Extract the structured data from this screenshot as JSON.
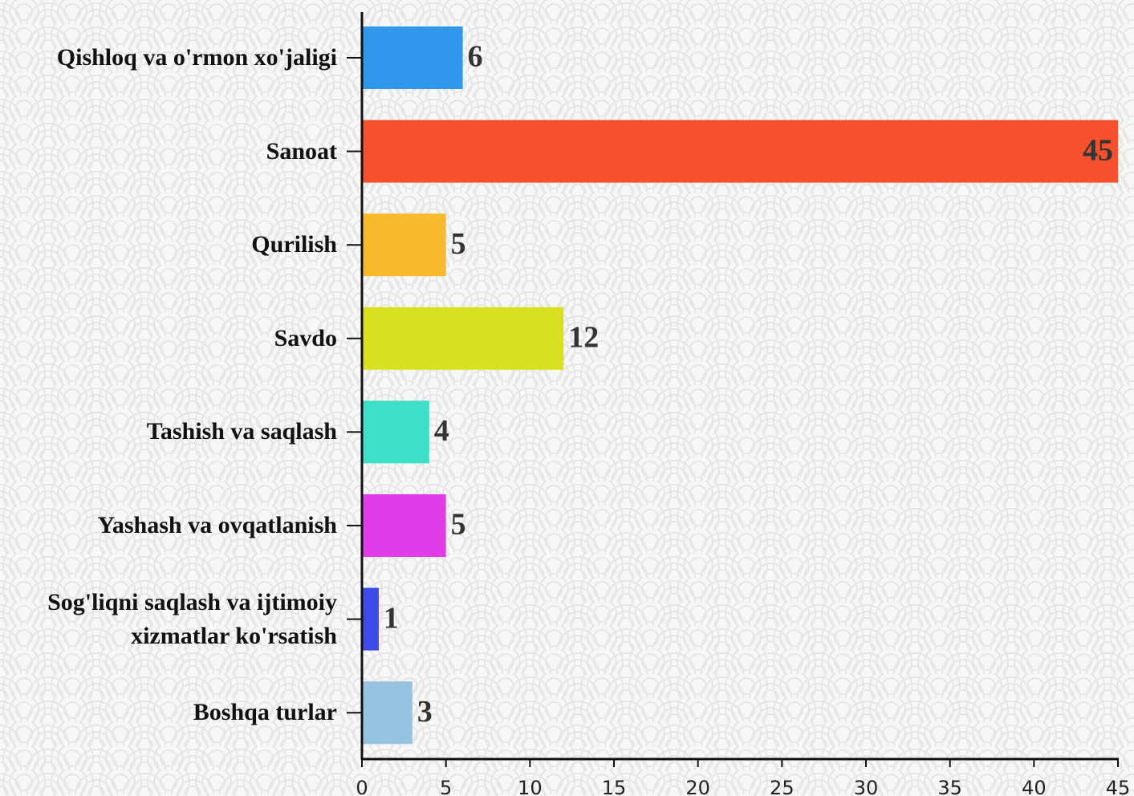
{
  "chart_data": {
    "type": "bar",
    "orientation": "horizontal",
    "categories": [
      "Qishloq va o'rmon xo'jaligi",
      "Sanoat",
      "Qurilish",
      "Savdo",
      "Tashish va saqlash",
      "Yashash va ovqatlanish",
      "Sog'liqni saqlash va ijtimoiy xizmatlar ko'rsatish",
      "Boshqa turlar"
    ],
    "values": [
      6,
      45,
      5,
      12,
      4,
      5,
      1,
      3
    ],
    "colors": [
      "#3097ec",
      "#f6502d",
      "#f8ba2c",
      "#d8e021",
      "#3ddfc6",
      "#e03de8",
      "#3d4be8",
      "#96c3df"
    ],
    "xlim": [
      0,
      45
    ],
    "xticks": [
      0,
      5,
      10,
      15,
      20,
      25,
      30,
      35,
      40,
      45
    ],
    "grid": false
  }
}
